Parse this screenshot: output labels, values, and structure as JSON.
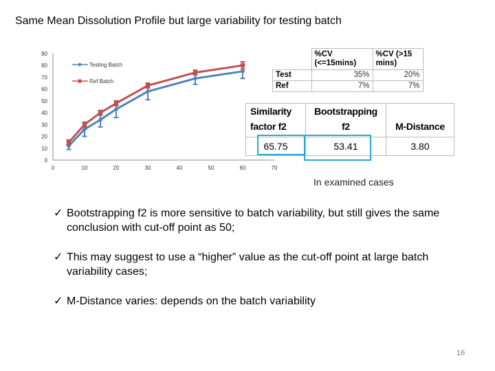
{
  "title": "Same Mean Dissolution Profile but large variability for testing batch",
  "chart_data": {
    "type": "line",
    "x_ticks": [
      0,
      10,
      20,
      30,
      40,
      50,
      60,
      70
    ],
    "y_ticks": [
      0,
      10,
      20,
      30,
      40,
      50,
      60,
      70,
      80,
      90
    ],
    "xlim": [
      0,
      70
    ],
    "ylim": [
      0,
      90
    ],
    "legend_position": "top-left",
    "series": [
      {
        "name": "Testing Batch",
        "color": "#4f81bd",
        "x": [
          5,
          10,
          15,
          20,
          30,
          45,
          60
        ],
        "y": [
          12,
          26,
          34,
          43,
          58,
          69,
          75
        ],
        "err": [
          3,
          6,
          6,
          7,
          7,
          5,
          6
        ]
      },
      {
        "name": "Ref Batch",
        "color": "#c0504d",
        "x": [
          5,
          10,
          15,
          20,
          30,
          45,
          60
        ],
        "y": [
          15,
          30,
          40,
          48,
          63,
          74,
          80
        ],
        "err": [
          2,
          2,
          2,
          2,
          2,
          2,
          3
        ]
      }
    ]
  },
  "cv_table": {
    "headers": [
      "",
      "%CV (<=15mins)",
      "%CV (>15 mins)"
    ],
    "rows": [
      {
        "label": "Test",
        "a": "35%",
        "b": "20%"
      },
      {
        "label": "Ref",
        "a": "7%",
        "b": "7%"
      }
    ]
  },
  "sim_table": {
    "headers": [
      "Similarity factor f2",
      "Bootstrapping f2",
      "M-Distance"
    ],
    "values": [
      "65.75",
      "53.41",
      "3.80"
    ]
  },
  "note": "In examined cases",
  "bullets": [
    "Bootstrapping f2 is more sensitive to batch variability, but still gives the same conclusion  with cut-off point as 50;",
    "This may suggest to use a “higher” value as the cut-off point at large batch variability cases;",
    "M-Distance varies: depends on the batch variability"
  ],
  "check_glyph": "✓",
  "page_number": "16"
}
